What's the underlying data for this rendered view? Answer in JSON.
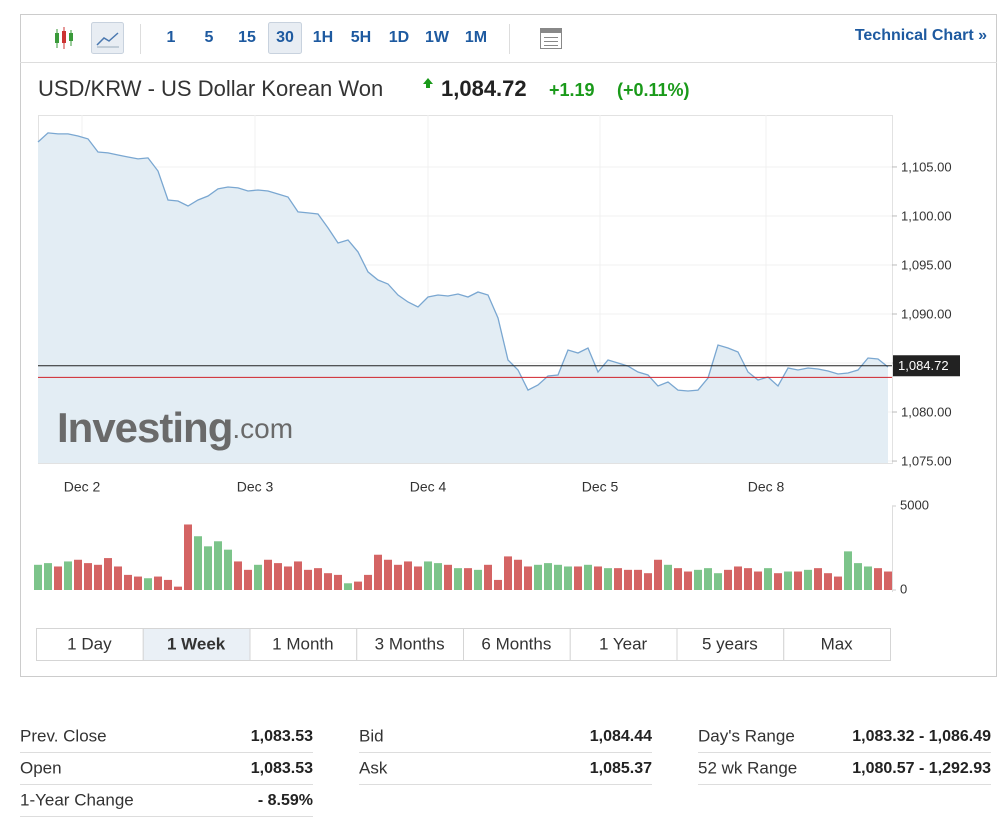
{
  "toolbar": {
    "intervals": [
      "1",
      "5",
      "15",
      "30",
      "1H",
      "5H",
      "1D",
      "1W",
      "1M"
    ],
    "active_interval": "30",
    "technical_link": "Technical Chart »"
  },
  "header": {
    "title": "USD/KRW - US Dollar Korean Won",
    "price": "1,084.72",
    "change": "+1.19",
    "change_percent": "(+0.11%)"
  },
  "chart_data": [
    {
      "type": "line",
      "watermark": "Investing",
      "watermark_suffix": ".com",
      "series": [
        {
          "color": "#7aa7d1",
          "fill": "#e3edf4",
          "values": [
            1107.55,
            1108.47,
            1108.37,
            1108.37,
            1108.16,
            1107.86,
            1106.53,
            1106.43,
            1106.22,
            1106.02,
            1105.82,
            1105.92,
            1104.59,
            1101.63,
            1101.53,
            1101.02,
            1101.63,
            1102.04,
            1102.76,
            1102.96,
            1102.86,
            1102.55,
            1102.65,
            1102.55,
            1102.24,
            1101.94,
            1100.41,
            1100.31,
            1100.2,
            1098.78,
            1097.24,
            1097.55,
            1096.33,
            1094.29,
            1093.47,
            1093.06,
            1091.94,
            1091.22,
            1090.71,
            1091.73,
            1091.94,
            1091.84,
            1092.04,
            1091.73,
            1092.24,
            1091.94,
            1089.59,
            1085.31,
            1084.29,
            1082.24,
            1082.76,
            1083.67,
            1083.78,
            1086.33,
            1086.02,
            1086.53,
            1084.08,
            1085.31,
            1085.0,
            1084.69,
            1084.08,
            1083.78,
            1082.65,
            1083.06,
            1082.24,
            1082.14,
            1082.24,
            1083.47,
            1086.84,
            1086.53,
            1086.12,
            1084.08,
            1083.27,
            1083.57,
            1082.65,
            1084.49,
            1084.29,
            1084.49,
            1084.39,
            1084.18,
            1083.88,
            1083.98,
            1084.29,
            1085.51,
            1085.41,
            1084.59
          ]
        }
      ],
      "xlim": [
        0,
        85.4
      ],
      "xticks": [
        {
          "value": 4.4,
          "label": "Dec 2"
        },
        {
          "value": 21.7,
          "label": "Dec 3"
        },
        {
          "value": 39,
          "label": "Dec 4"
        },
        {
          "value": 56.2,
          "label": "Dec 5"
        },
        {
          "value": 72.8,
          "label": "Dec 8"
        }
      ],
      "ylim": [
        1074.8,
        1110.3
      ],
      "yticks": [
        {
          "value": 1075,
          "label": "1,075.00"
        },
        {
          "value": 1080,
          "label": "1,080.00"
        },
        {
          "value": 1085,
          "label": "1,085.00"
        },
        {
          "value": 1090,
          "label": "1,090.00"
        },
        {
          "value": 1095,
          "label": "1,095.00"
        },
        {
          "value": 1100,
          "label": "1,100.00"
        },
        {
          "value": 1105,
          "label": "1,105.00"
        }
      ],
      "price_line": {
        "value": 1084.72,
        "label": "1,084.72",
        "color": "#222222"
      },
      "reference_line": {
        "value": 1083.53,
        "color": "#d0232b"
      },
      "grid": true
    },
    {
      "type": "bar",
      "values": [
        1500,
        1600,
        1400,
        1700,
        1800,
        1600,
        1500,
        1900,
        1400,
        900,
        800,
        700,
        800,
        600,
        200,
        3900,
        3200,
        2600,
        2900,
        2400,
        1700,
        1200,
        1500,
        1800,
        1600,
        1400,
        1700,
        1200,
        1300,
        1000,
        900,
        400,
        500,
        900,
        2100,
        1800,
        1500,
        1700,
        1400,
        1700,
        1600,
        1500,
        1300,
        1300,
        1200,
        1500,
        600,
        2000,
        1800,
        1400,
        1500,
        1600,
        1500,
        1400,
        1400,
        1500,
        1400,
        1300,
        1300,
        1200,
        1200,
        1000,
        1800,
        1500,
        1300,
        1100,
        1200,
        1300,
        1000,
        1200,
        1400,
        1300,
        1100,
        1300,
        1000,
        1100,
        1100,
        1200,
        1300,
        1000,
        800,
        2300,
        1600,
        1400,
        1300,
        1100
      ],
      "up_color": "#7cc48a",
      "down_color": "#d46464",
      "xlim": [
        0,
        85.4
      ],
      "ylim": [
        0,
        5000
      ],
      "yticks": [
        0,
        5000
      ]
    }
  ],
  "ranges": [
    "1 Day",
    "1 Week",
    "1 Month",
    "3 Months",
    "6 Months",
    "1 Year",
    "5 years",
    "Max"
  ],
  "active_range": "1 Week",
  "stats": [
    [
      {
        "label": "Prev. Close",
        "value": "1,083.53"
      },
      {
        "label": "Open",
        "value": "1,083.53"
      },
      {
        "label": "1-Year Change",
        "value": "- 8.59%"
      }
    ],
    [
      {
        "label": "Bid",
        "value": "1,084.44"
      },
      {
        "label": "Ask",
        "value": "1,085.37"
      }
    ],
    [
      {
        "label": "Day's Range",
        "value": "1,083.32 - 1,086.49"
      },
      {
        "label": "52 wk Range",
        "value": "1,080.57 - 1,292.93"
      }
    ]
  ]
}
